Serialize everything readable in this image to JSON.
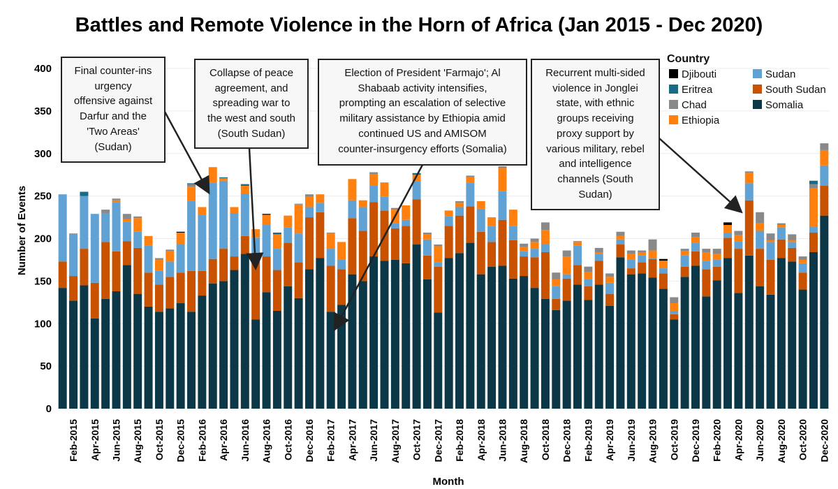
{
  "chart_data": {
    "type": "bar",
    "stacked": true,
    "title": "Battles and Remote Violence in the Horn of Africa (Jan 2015 - Dec 2020)",
    "xlabel": "Month",
    "ylabel": "Number of Events",
    "ylim": [
      0,
      400
    ],
    "yticks": [
      0,
      50,
      100,
      150,
      200,
      250,
      300,
      350,
      400
    ],
    "grid": true,
    "legend": {
      "title": "Country",
      "placement": "top-right"
    },
    "categories": [
      "Jan-2015",
      "Feb-2015",
      "Mar-2015",
      "Apr-2015",
      "May-2015",
      "Jun-2015",
      "Jul-2015",
      "Aug-2015",
      "Sep-2015",
      "Oct-2015",
      "Nov-2015",
      "Dec-2015",
      "Jan-2016",
      "Feb-2016",
      "Mar-2016",
      "Apr-2016",
      "May-2016",
      "Jun-2016",
      "Jul-2016",
      "Aug-2016",
      "Sep-2016",
      "Oct-2016",
      "Nov-2016",
      "Dec-2016",
      "Jan-2017",
      "Feb-2017",
      "Mar-2017",
      "Apr-2017",
      "May-2017",
      "Jun-2017",
      "Jul-2017",
      "Aug-2017",
      "Sep-2017",
      "Oct-2017",
      "Nov-2017",
      "Dec-2017",
      "Jan-2018",
      "Feb-2018",
      "Mar-2018",
      "Apr-2018",
      "May-2018",
      "Jun-2018",
      "Jul-2018",
      "Aug-2018",
      "Sep-2018",
      "Oct-2018",
      "Nov-2018",
      "Dec-2018",
      "Jan-2019",
      "Feb-2019",
      "Mar-2019",
      "Apr-2019",
      "May-2019",
      "Jun-2019",
      "Jul-2019",
      "Aug-2019",
      "Sep-2019",
      "Oct-2019",
      "Nov-2019",
      "Dec-2019",
      "Jan-2020",
      "Feb-2020",
      "Mar-2020",
      "Apr-2020",
      "May-2020",
      "Jun-2020",
      "Jul-2020",
      "Aug-2020",
      "Sep-2020",
      "Oct-2020",
      "Nov-2020",
      "Dec-2020"
    ],
    "visible_tick_labels": "every second month starting Feb-2015",
    "series": [
      {
        "name": "Somalia",
        "color": "#0b3746",
        "values": [
          142,
          127,
          145,
          106,
          129,
          138,
          169,
          135,
          120,
          114,
          118,
          124,
          114,
          133,
          147,
          150,
          163,
          182,
          105,
          137,
          115,
          144,
          130,
          164,
          177,
          114,
          122,
          158,
          150,
          179,
          174,
          175,
          171,
          193,
          152,
          113,
          177,
          183,
          195,
          158,
          167,
          168,
          153,
          156,
          142,
          129,
          116,
          127,
          146,
          128,
          146,
          121,
          178,
          158,
          159,
          154,
          141,
          105,
          155,
          168,
          132,
          151,
          177,
          136,
          180,
          144,
          134,
          177,
          173,
          140,
          184,
          227
        ]
      },
      {
        "name": "South Sudan",
        "color": "#c85200",
        "values": [
          31,
          29,
          43,
          42,
          67,
          47,
          28,
          54,
          40,
          32,
          37,
          36,
          48,
          29,
          29,
          38,
          16,
          21,
          71,
          42,
          48,
          51,
          42,
          61,
          54,
          54,
          42,
          66,
          59,
          64,
          59,
          37,
          44,
          53,
          28,
          54,
          38,
          44,
          43,
          50,
          29,
          54,
          45,
          23,
          36,
          55,
          13,
          26,
          23,
          16,
          28,
          14,
          15,
          7,
          13,
          22,
          18,
          6,
          12,
          17,
          32,
          16,
          24,
          52,
          65,
          44,
          41,
          22,
          16,
          20,
          23,
          35
        ]
      },
      {
        "name": "Sudan",
        "color": "#5fa2d3",
        "values": [
          79,
          49,
          62,
          81,
          34,
          58,
          23,
          19,
          32,
          16,
          18,
          33,
          82,
          66,
          90,
          80,
          51,
          50,
          25,
          37,
          25,
          18,
          34,
          12,
          11,
          20,
          11,
          21,
          28,
          19,
          16,
          6,
          7,
          21,
          19,
          5,
          11,
          10,
          28,
          27,
          19,
          34,
          17,
          6,
          10,
          9,
          15,
          5,
          23,
          8,
          8,
          13,
          6,
          10,
          8,
          1,
          6,
          4,
          13,
          10,
          10,
          8,
          6,
          9,
          20,
          21,
          21,
          14,
          7,
          11,
          7,
          24
        ]
      },
      {
        "name": "Ethiopia",
        "color": "#ff800e",
        "values": [
          0,
          0,
          0,
          0,
          0,
          2,
          3,
          16,
          11,
          13,
          12,
          14,
          17,
          9,
          18,
          3,
          7,
          9,
          10,
          12,
          17,
          14,
          34,
          12,
          10,
          18,
          21,
          25,
          8,
          14,
          17,
          16,
          17,
          8,
          6,
          19,
          7,
          5,
          6,
          9,
          10,
          27,
          19,
          5,
          8,
          17,
          8,
          21,
          4,
          9,
          2,
          7,
          4,
          7,
          4,
          9,
          9,
          9,
          5,
          7,
          10,
          7,
          9,
          7,
          12,
          9,
          2,
          3,
          2,
          4,
          45,
          18
        ]
      },
      {
        "name": "Chad",
        "color": "#898989",
        "values": [
          0,
          1,
          0,
          0,
          4,
          2,
          6,
          2,
          0,
          2,
          2,
          0,
          3,
          0,
          0,
          0,
          0,
          0,
          0,
          0,
          0,
          0,
          1,
          3,
          0,
          1,
          0,
          0,
          0,
          2,
          0,
          2,
          0,
          0,
          2,
          2,
          0,
          2,
          2,
          0,
          0,
          2,
          0,
          4,
          4,
          9,
          8,
          7,
          1,
          6,
          5,
          4,
          5,
          4,
          2,
          13,
          0,
          7,
          3,
          5,
          4,
          6,
          0,
          5,
          2,
          13,
          8,
          2,
          7,
          4,
          5,
          8
        ]
      },
      {
        "name": "Eritrea",
        "color": "#176b87",
        "values": [
          0,
          0,
          5,
          0,
          0,
          0,
          0,
          0,
          0,
          0,
          0,
          0,
          1,
          0,
          0,
          1,
          0,
          2,
          0,
          0,
          2,
          0,
          0,
          0,
          0,
          0,
          0,
          0,
          0,
          0,
          0,
          0,
          0,
          2,
          0,
          0,
          0,
          0,
          0,
          0,
          0,
          0,
          0,
          0,
          0,
          0,
          0,
          0,
          0,
          0,
          0,
          0,
          0,
          0,
          0,
          0,
          0,
          0,
          0,
          0,
          0,
          0,
          0,
          0,
          0,
          0,
          0,
          0,
          0,
          0,
          4,
          0
        ]
      },
      {
        "name": "Djibouti",
        "color": "#000000",
        "values": [
          0,
          0,
          0,
          0,
          0,
          0,
          0,
          0,
          0,
          0,
          0,
          1,
          0,
          0,
          0,
          0,
          0,
          0,
          0,
          1,
          0,
          0,
          0,
          0,
          0,
          0,
          0,
          0,
          0,
          0,
          0,
          0,
          0,
          0,
          0,
          0,
          0,
          0,
          0,
          0,
          0,
          0,
          0,
          0,
          0,
          0,
          0,
          0,
          0,
          0,
          0,
          0,
          0,
          0,
          0,
          0,
          2,
          0,
          0,
          0,
          0,
          0,
          3,
          0,
          0,
          0,
          0,
          0,
          0,
          0,
          0,
          0
        ]
      }
    ],
    "legend_order": [
      "Djibouti",
      "Eritrea",
      "Chad",
      "Ethiopia",
      "Sudan",
      "South Sudan",
      "Somalia"
    ],
    "annotations": [
      {
        "lines": [
          "Final counter-ins",
          "urgency",
          "offensive against",
          "Darfur and the",
          "'Two Areas'",
          "(Sudan)"
        ],
        "points_to": "Mar-2016"
      },
      {
        "lines": [
          "Collapse of peace",
          "agreement, and",
          "spreading war to",
          "the west and south",
          "(South Sudan)"
        ],
        "points_to": "Jul-2016"
      },
      {
        "lines": [
          "Election of President 'Farmajo'; Al",
          "Shabaab activity intensifies,",
          "prompting an escalation of selective",
          "military assistance by Ethiopia amid",
          "continued US and AMISOM",
          "counter-insurgency efforts (Somalia)"
        ],
        "points_to": "Feb-2017"
      },
      {
        "lines": [
          "Recurrent multi-sided",
          "violence in Jonglei",
          "state, with ethnic",
          "groups receiving",
          "proxy support by",
          "various military, rebel",
          "and intelligence",
          "channels (South",
          "Sudan)"
        ],
        "points_to": "Apr-2020"
      }
    ]
  }
}
